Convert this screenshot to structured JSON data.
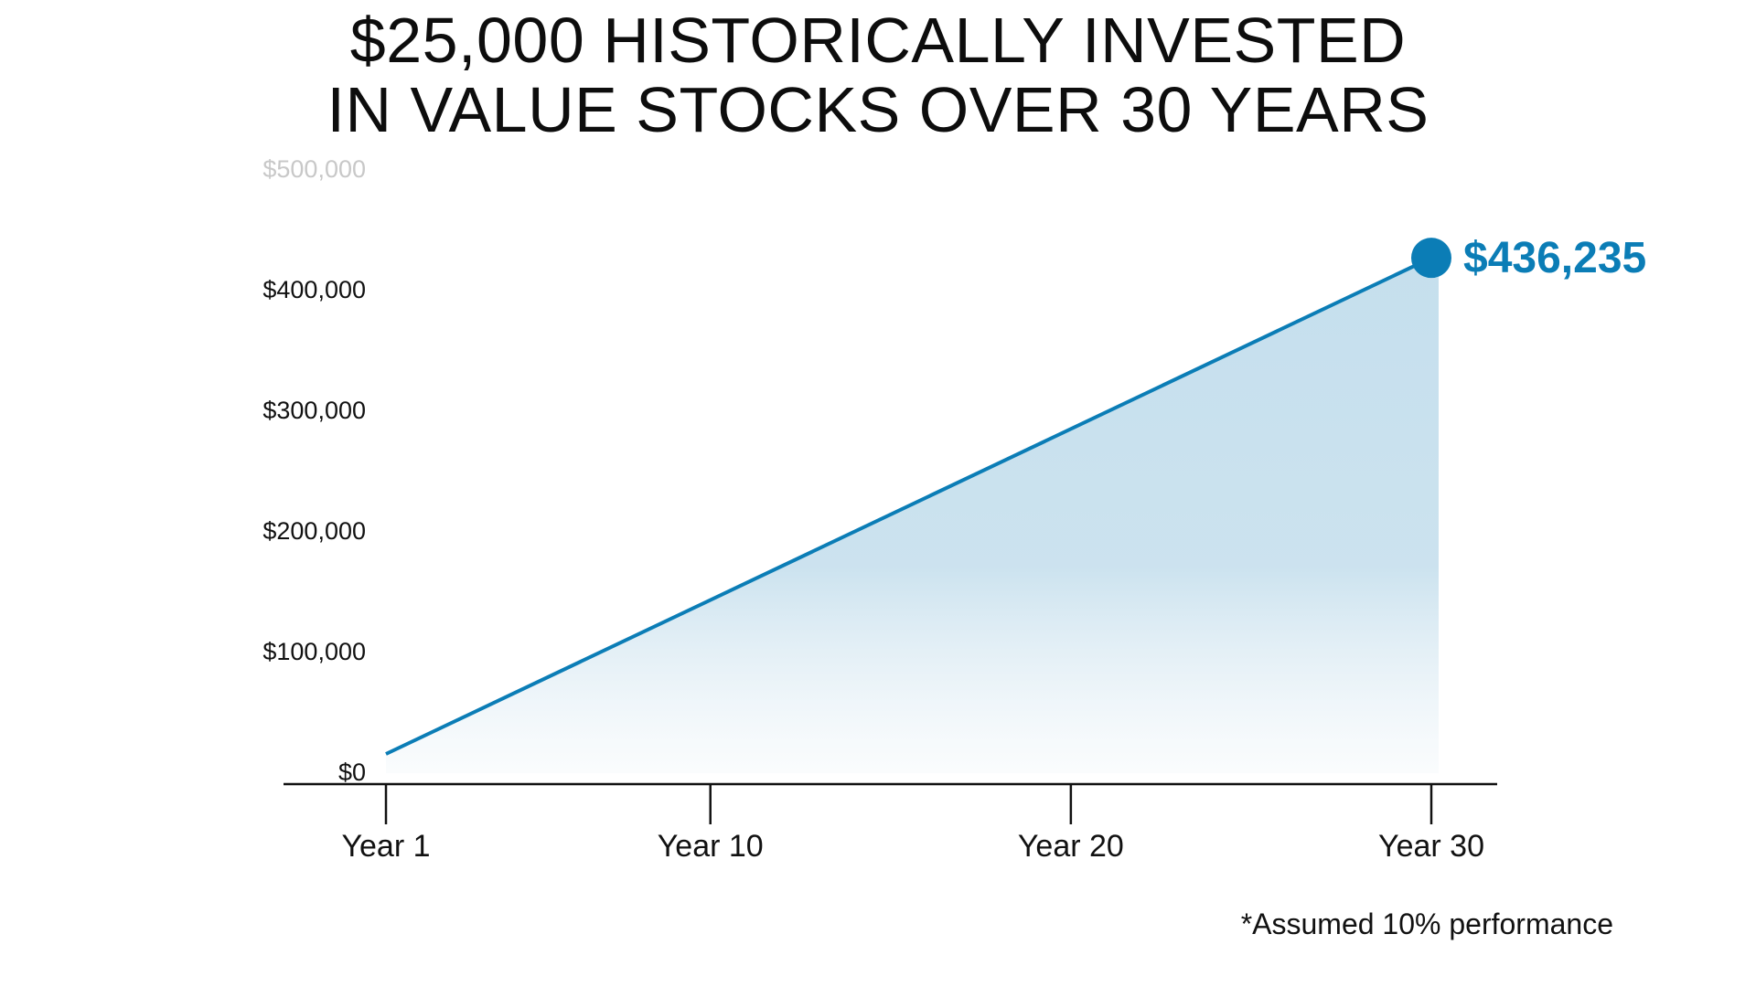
{
  "chart_data": {
    "type": "area",
    "title_lines": [
      "$25,000 HISTORICALLY INVESTED",
      "IN VALUE STOCKS OVER 30 YEARS"
    ],
    "x": [
      1,
      30
    ],
    "y": [
      25000,
      436235
    ],
    "xticks": [
      1,
      10,
      20,
      30
    ],
    "xtick_labels": [
      "Year 1",
      "Year 10",
      "Year 20",
      "Year 30"
    ],
    "yticks": [
      0,
      100000,
      200000,
      300000,
      400000,
      500000
    ],
    "ytick_labels": [
      "$0",
      "$100,000",
      "$200,000",
      "$300,000",
      "$400,000",
      "$500,000"
    ],
    "ylim": [
      0,
      500000
    ],
    "grid": true,
    "end_label": "$436,235",
    "footnote": "*Assumed 10% performance",
    "colors": {
      "line": "#0b7db6",
      "fill": "#c5dfed"
    }
  }
}
